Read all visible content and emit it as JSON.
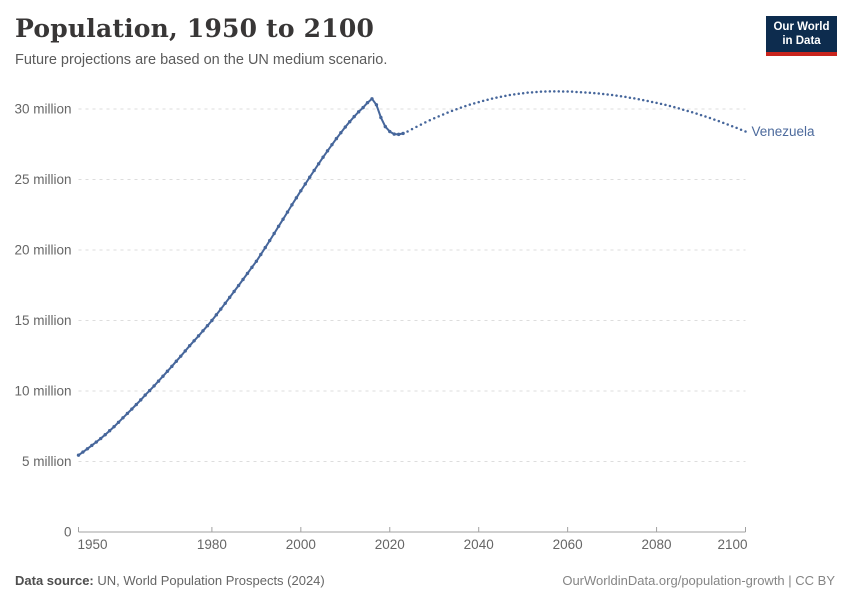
{
  "header": {
    "title": "Population, 1950 to 2100",
    "subtitle": "Future projections are based on the UN medium scenario."
  },
  "logo": {
    "line1": "Our World",
    "line2": "in Data"
  },
  "footer": {
    "source_label": "Data source:",
    "source_text": "UN, World Population Prospects (2024)",
    "citation": "OurWorldinData.org/population-growth | CC BY"
  },
  "chart_data": {
    "type": "line",
    "title": "Population, 1950 to 2100",
    "xlabel": "",
    "ylabel": "",
    "unit": "people (millions)",
    "xlim": [
      1950,
      2100
    ],
    "ylim": [
      0,
      32
    ],
    "grid": "horizontal-dashed",
    "legend_position": "end-of-line-label",
    "line_color": "#46669B",
    "label_color": "#4C6A9C",
    "grid_color": "#dddddd",
    "axis_color": "#a1a1a1",
    "tick_text_color": "#666666",
    "entity_label": "Venezuela",
    "x_ticks": [
      1950,
      1980,
      2000,
      2020,
      2040,
      2060,
      2080,
      2100
    ],
    "y_ticks": [
      {
        "value": 0,
        "label": "0"
      },
      {
        "value": 5,
        "label": "5 million"
      },
      {
        "value": 10,
        "label": "10 million"
      },
      {
        "value": 15,
        "label": "15 million"
      },
      {
        "value": 20,
        "label": "20 million"
      },
      {
        "value": 25,
        "label": "25 million"
      },
      {
        "value": 30,
        "label": "30 million"
      }
    ],
    "series": [
      {
        "name": "Venezuela — historical estimates",
        "style": "solid-with-markers",
        "start_year": 1950,
        "values": [
          5.45,
          5.67,
          5.9,
          6.14,
          6.38,
          6.63,
          6.9,
          7.18,
          7.47,
          7.78,
          8.1,
          8.41,
          8.72,
          9.04,
          9.37,
          9.71,
          10.03,
          10.36,
          10.7,
          11.05,
          11.4,
          11.75,
          12.11,
          12.47,
          12.84,
          13.21,
          13.56,
          13.91,
          14.27,
          14.63,
          15.0,
          15.4,
          15.81,
          16.22,
          16.64,
          17.06,
          17.48,
          17.91,
          18.34,
          18.77,
          19.2,
          19.68,
          20.17,
          20.67,
          21.17,
          21.68,
          22.18,
          22.69,
          23.2,
          23.7,
          24.2,
          24.68,
          25.16,
          25.64,
          26.11,
          26.58,
          27.03,
          27.47,
          27.9,
          28.32,
          28.72,
          29.1,
          29.46,
          29.8,
          30.1,
          30.45,
          30.72,
          30.3,
          29.4,
          28.75,
          28.4,
          28.22,
          28.2,
          28.27
        ]
      },
      {
        "name": "Venezuela — UN medium projection",
        "style": "dotted",
        "start_year": 2024,
        "values": [
          28.4,
          28.57,
          28.73,
          28.89,
          29.05,
          29.2,
          29.34,
          29.48,
          29.61,
          29.74,
          29.87,
          29.98,
          30.1,
          30.2,
          30.31,
          30.4,
          30.49,
          30.58,
          30.66,
          30.74,
          30.81,
          30.87,
          30.93,
          30.99,
          31.04,
          31.08,
          31.12,
          31.16,
          31.18,
          31.21,
          31.23,
          31.24,
          31.25,
          31.25,
          31.25,
          31.24,
          31.24,
          31.23,
          31.21,
          31.19,
          31.17,
          31.15,
          31.13,
          31.1,
          31.06,
          31.03,
          30.99,
          30.95,
          30.9,
          30.86,
          30.8,
          30.75,
          30.69,
          30.63,
          30.57,
          30.5,
          30.43,
          30.36,
          30.29,
          30.21,
          30.13,
          30.04,
          29.95,
          29.86,
          29.77,
          29.67,
          29.57,
          29.47,
          29.36,
          29.25,
          29.14,
          29.02,
          28.9,
          28.78,
          28.66,
          28.53,
          28.4
        ]
      }
    ]
  }
}
